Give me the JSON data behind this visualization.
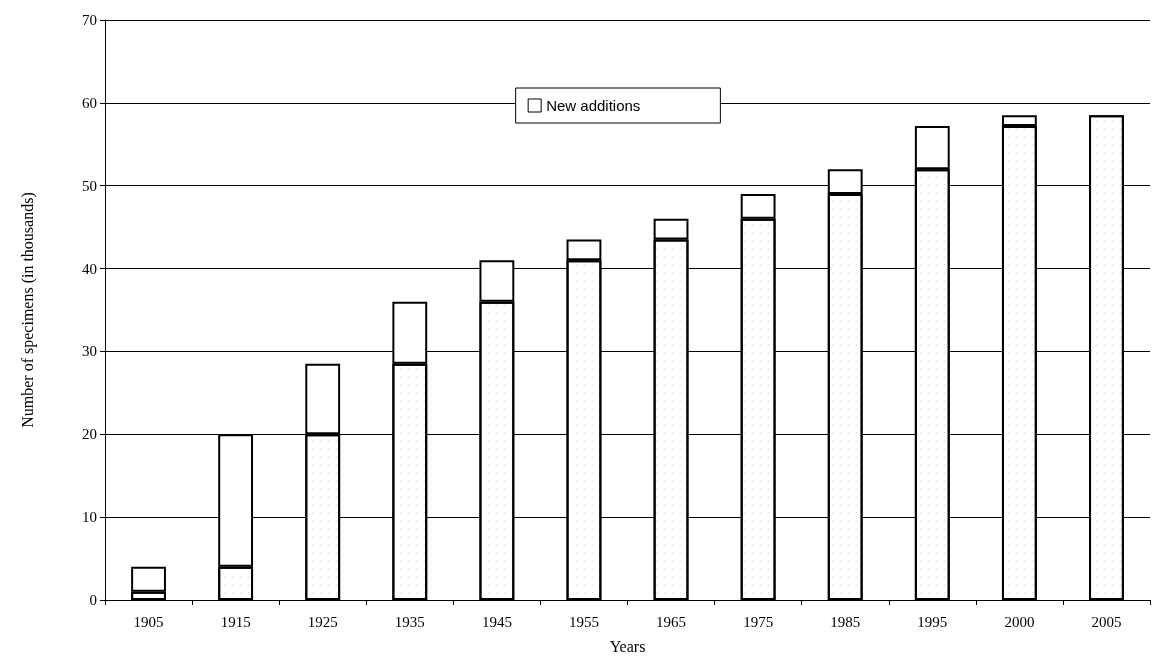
{
  "chart_data": {
    "type": "bar",
    "stacked": true,
    "xlabel": "Years",
    "ylabel": "Number of specimens (in thousands)",
    "categories": [
      "1905",
      "1915",
      "1925",
      "1935",
      "1945",
      "1955",
      "1965",
      "1975",
      "1985",
      "1995",
      "2000",
      "2005"
    ],
    "series": [
      {
        "color": "#ffffff",
        "values": [
          1,
          4,
          20,
          28.5,
          36,
          41,
          43.5,
          46,
          49,
          52,
          57.2,
          58.5
        ]
      },
      {
        "name": "New additions",
        "color": "#ffffff",
        "values": [
          3,
          16,
          8.5,
          7.5,
          5,
          2.5,
          2.5,
          3,
          3,
          5.2,
          1.3,
          null
        ]
      }
    ],
    "ylim": [
      0,
      70
    ],
    "yticks": [
      0,
      10,
      20,
      30,
      40,
      50,
      60,
      70
    ],
    "grid": "y",
    "legend": "top"
  }
}
